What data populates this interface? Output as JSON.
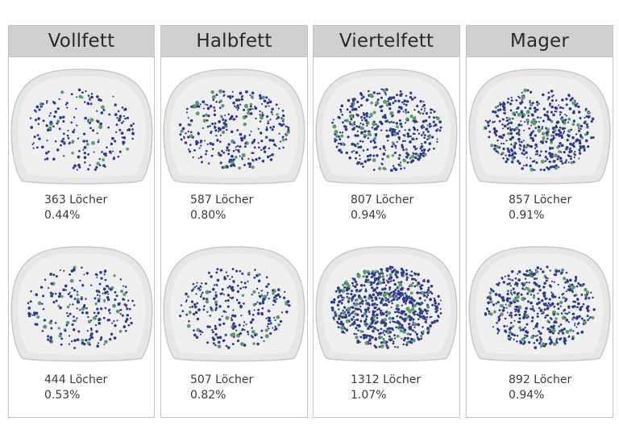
{
  "columns": [
    {
      "title": "Vollfett",
      "samples": [
        {
          "holes_label": "363 Löcher",
          "percent_label": "0.44%",
          "holes": 363,
          "percent": 0.44
        },
        {
          "holes_label": "444 Löcher",
          "percent_label": "0.53%",
          "holes": 444,
          "percent": 0.53
        }
      ]
    },
    {
      "title": "Halbfett",
      "samples": [
        {
          "holes_label": "587 Löcher",
          "percent_label": "0.80%",
          "holes": 587,
          "percent": 0.8
        },
        {
          "holes_label": "507 Löcher",
          "percent_label": "0.82%",
          "holes": 507,
          "percent": 0.82
        }
      ]
    },
    {
      "title": "Viertelfett",
      "samples": [
        {
          "holes_label": "807 Löcher",
          "percent_label": "0.94%",
          "holes": 807,
          "percent": 0.94
        },
        {
          "holes_label": "1312 Löcher",
          "percent_label": "1.07%",
          "holes": 1312,
          "percent": 1.07
        }
      ]
    },
    {
      "title": "Mager",
      "samples": [
        {
          "holes_label": "857 Löcher",
          "percent_label": "0.91%",
          "holes": 857,
          "percent": 0.91
        },
        {
          "holes_label": "892 Löcher",
          "percent_label": "0.94%",
          "holes": 892,
          "percent": 0.94
        }
      ]
    }
  ],
  "colors": {
    "hole_blue": "#2e3a8c",
    "hole_green": "#5f9a6a",
    "cheese_fill": "#e6e6e6",
    "cheese_edge": "#c9c9c9"
  }
}
